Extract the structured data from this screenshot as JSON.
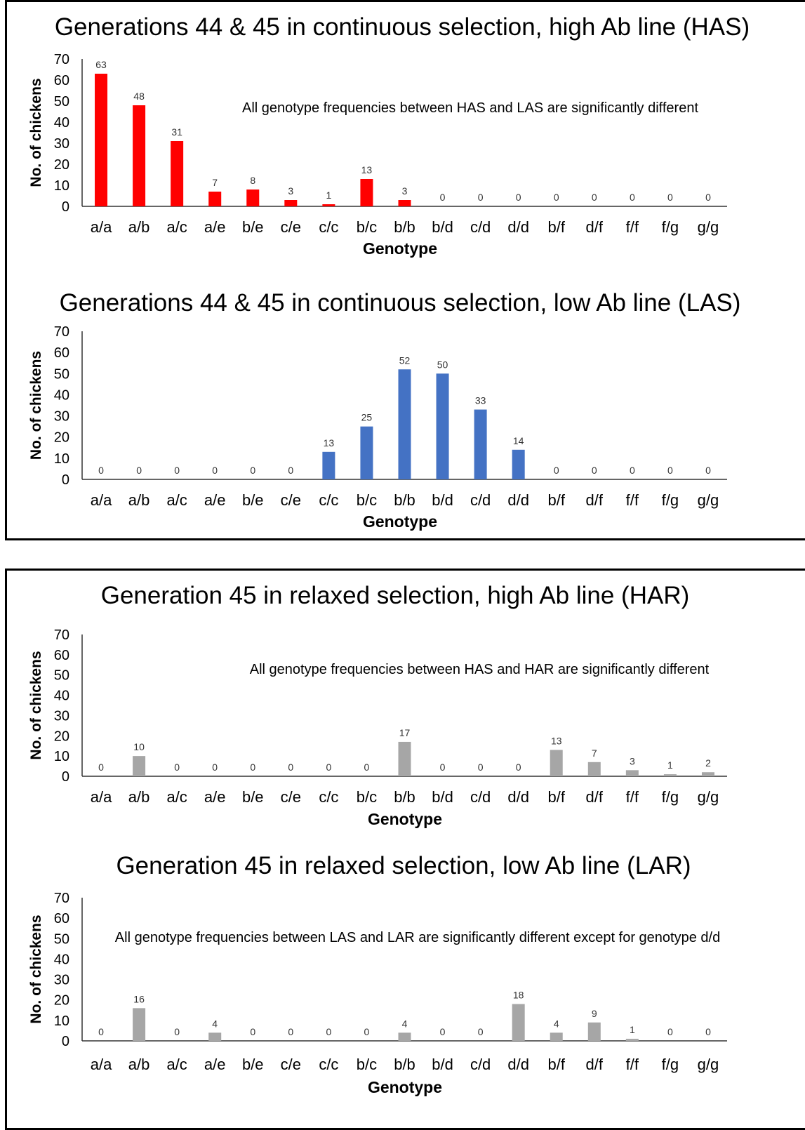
{
  "chart_data": [
    {
      "type": "bar",
      "title": "Generations 44 & 45 in continuous selection, high Ab line (HAS)",
      "annotation": "All genotype frequencies between HAS and LAS are significantly different",
      "xlabel": "Genotype",
      "ylabel": "No. of chickens",
      "ylim": [
        0,
        70
      ],
      "yticks": [
        0,
        10,
        20,
        30,
        40,
        50,
        60,
        70
      ],
      "color": "#ff0000",
      "categories": [
        "a/a",
        "a/b",
        "a/c",
        "a/e",
        "b/e",
        "c/e",
        "c/c",
        "b/c",
        "b/b",
        "b/d",
        "c/d",
        "d/d",
        "b/f",
        "d/f",
        "f/f",
        "f/g",
        "g/g"
      ],
      "values": [
        63,
        48,
        31,
        7,
        8,
        3,
        1,
        13,
        3,
        0,
        0,
        0,
        0,
        0,
        0,
        0,
        0
      ]
    },
    {
      "type": "bar",
      "title": "Generations 44 & 45 in continuous selection, low Ab line (LAS)",
      "annotation": "",
      "xlabel": "Genotype",
      "ylabel": "No. of chickens",
      "ylim": [
        0,
        70
      ],
      "yticks": [
        0,
        10,
        20,
        30,
        40,
        50,
        60,
        70
      ],
      "color": "#4472c4",
      "categories": [
        "a/a",
        "a/b",
        "a/c",
        "a/e",
        "b/e",
        "c/e",
        "c/c",
        "b/c",
        "b/b",
        "b/d",
        "c/d",
        "d/d",
        "b/f",
        "d/f",
        "f/f",
        "f/g",
        "g/g"
      ],
      "values": [
        0,
        0,
        0,
        0,
        0,
        0,
        13,
        25,
        52,
        50,
        33,
        14,
        0,
        0,
        0,
        0,
        0
      ]
    },
    {
      "type": "bar",
      "title": "Generation 45 in relaxed selection, high Ab line (HAR)",
      "annotation": "All genotype frequencies between HAS and HAR are significantly different",
      "xlabel": "Genotype",
      "ylabel": "No. of chickens",
      "ylim": [
        0,
        70
      ],
      "yticks": [
        0,
        10,
        20,
        30,
        40,
        50,
        60,
        70
      ],
      "color": "#a6a6a6",
      "categories": [
        "a/a",
        "a/b",
        "a/c",
        "a/e",
        "b/e",
        "c/e",
        "c/c",
        "b/c",
        "b/b",
        "b/d",
        "c/d",
        "d/d",
        "b/f",
        "d/f",
        "f/f",
        "f/g",
        "g/g"
      ],
      "values": [
        0,
        10,
        0,
        0,
        0,
        0,
        0,
        0,
        17,
        0,
        0,
        0,
        13,
        7,
        3,
        1,
        2
      ]
    },
    {
      "type": "bar",
      "title": "Generation 45 in relaxed selection, low Ab line (LAR)",
      "annotation": "All genotype frequencies between LAS and LAR are significantly different except for genotype d/d",
      "xlabel": "Genotype",
      "ylabel": "No. of chickens",
      "ylim": [
        0,
        70
      ],
      "yticks": [
        0,
        10,
        20,
        30,
        40,
        50,
        60,
        70
      ],
      "color": "#a6a6a6",
      "categories": [
        "a/a",
        "a/b",
        "a/c",
        "a/e",
        "b/e",
        "c/e",
        "c/c",
        "b/c",
        "b/b",
        "b/d",
        "c/d",
        "d/d",
        "b/f",
        "d/f",
        "f/f",
        "f/g",
        "g/g"
      ],
      "values": [
        0,
        16,
        0,
        4,
        0,
        0,
        0,
        0,
        4,
        0,
        0,
        18,
        4,
        9,
        1,
        0,
        0
      ]
    }
  ]
}
